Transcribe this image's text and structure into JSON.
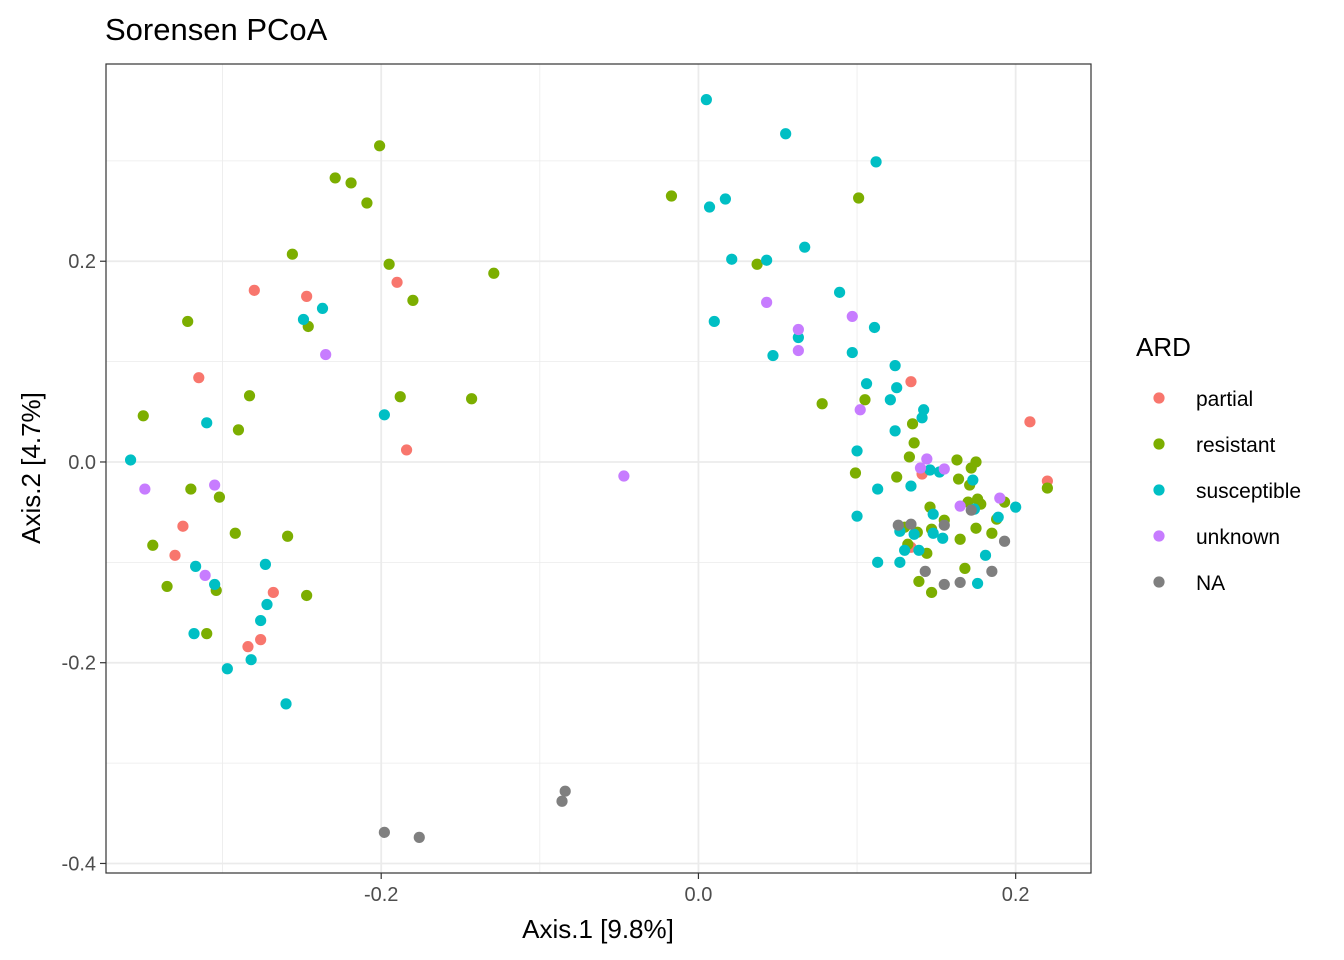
{
  "chart_data": {
    "type": "scatter",
    "title": "Sorensen PCoA",
    "xlabel": "Axis.1   [9.8%]",
    "ylabel": "Axis.2   [4.7%]",
    "xlim": [
      -0.3735,
      0.2475
    ],
    "ylim": [
      -0.4095,
      0.3965
    ],
    "x_ticks": [
      {
        "value": -0.2,
        "label": "-0.2"
      },
      {
        "value": 0.0,
        "label": "0.0"
      },
      {
        "value": 0.2,
        "label": "0.2"
      }
    ],
    "y_ticks": [
      {
        "value": -0.4,
        "label": "-0.4"
      },
      {
        "value": -0.2,
        "label": "-0.2"
      },
      {
        "value": 0.0,
        "label": "0.0"
      },
      {
        "value": 0.2,
        "label": "0.2"
      }
    ],
    "grid": true,
    "legend": {
      "title": "ARD",
      "position": "right"
    },
    "series": [
      {
        "name": "partial",
        "color": "#F8766D",
        "points": [
          [
            -0.28,
            0.171
          ],
          [
            -0.247,
            0.165
          ],
          [
            -0.19,
            0.179
          ],
          [
            -0.315,
            0.084
          ],
          [
            -0.184,
            0.012
          ],
          [
            -0.325,
            -0.064
          ],
          [
            -0.33,
            -0.093
          ],
          [
            -0.268,
            -0.13
          ],
          [
            -0.276,
            -0.177
          ],
          [
            -0.284,
            -0.184
          ],
          [
            0.134,
            0.08
          ],
          [
            0.209,
            0.04
          ],
          [
            0.22,
            -0.019
          ],
          [
            0.141,
            -0.012
          ],
          [
            0.134,
            -0.085
          ]
        ]
      },
      {
        "name": "resistant",
        "color": "#7CAE00",
        "points": [
          [
            -0.201,
            0.315
          ],
          [
            -0.229,
            0.283
          ],
          [
            -0.219,
            0.278
          ],
          [
            -0.209,
            0.258
          ],
          [
            -0.256,
            0.207
          ],
          [
            -0.195,
            0.197
          ],
          [
            -0.129,
            0.188
          ],
          [
            -0.18,
            0.161
          ],
          [
            -0.322,
            0.14
          ],
          [
            -0.246,
            0.135
          ],
          [
            -0.283,
            0.066
          ],
          [
            -0.188,
            0.065
          ],
          [
            -0.143,
            0.063
          ],
          [
            -0.35,
            0.046
          ],
          [
            -0.29,
            0.032
          ],
          [
            -0.32,
            -0.027
          ],
          [
            -0.302,
            -0.035
          ],
          [
            -0.292,
            -0.071
          ],
          [
            -0.259,
            -0.074
          ],
          [
            -0.344,
            -0.083
          ],
          [
            -0.335,
            -0.124
          ],
          [
            -0.304,
            -0.128
          ],
          [
            -0.247,
            -0.133
          ],
          [
            -0.31,
            -0.171
          ],
          [
            -0.017,
            0.265
          ],
          [
            0.101,
            0.263
          ],
          [
            0.037,
            0.197
          ],
          [
            0.078,
            0.058
          ],
          [
            0.105,
            0.062
          ],
          [
            0.135,
            0.038
          ],
          [
            0.136,
            0.019
          ],
          [
            0.133,
            0.005
          ],
          [
            0.099,
            -0.011
          ],
          [
            0.125,
            -0.015
          ],
          [
            0.146,
            -0.045
          ],
          [
            0.155,
            -0.058
          ],
          [
            0.163,
            0.002
          ],
          [
            0.172,
            -0.006
          ],
          [
            0.175,
            0.0
          ],
          [
            0.164,
            -0.017
          ],
          [
            0.171,
            -0.023
          ],
          [
            0.17,
            -0.04
          ],
          [
            0.176,
            -0.037
          ],
          [
            0.178,
            -0.042
          ],
          [
            0.193,
            -0.04
          ],
          [
            0.188,
            -0.057
          ],
          [
            0.185,
            -0.071
          ],
          [
            0.175,
            -0.066
          ],
          [
            0.13,
            -0.065
          ],
          [
            0.138,
            -0.07
          ],
          [
            0.147,
            -0.067
          ],
          [
            0.165,
            -0.077
          ],
          [
            0.132,
            -0.082
          ],
          [
            0.144,
            -0.091
          ],
          [
            0.168,
            -0.106
          ],
          [
            0.139,
            -0.119
          ],
          [
            0.147,
            -0.13
          ],
          [
            0.22,
            -0.026
          ]
        ]
      },
      {
        "name": "susceptible",
        "color": "#00BFC4",
        "points": [
          [
            0.005,
            0.361
          ],
          [
            0.055,
            0.327
          ],
          [
            0.112,
            0.299
          ],
          [
            0.007,
            0.254
          ],
          [
            0.017,
            0.262
          ],
          [
            0.021,
            0.202
          ],
          [
            0.043,
            0.201
          ],
          [
            0.067,
            0.214
          ],
          [
            0.01,
            0.14
          ],
          [
            0.089,
            0.169
          ],
          [
            0.111,
            0.134
          ],
          [
            0.063,
            0.124
          ],
          [
            0.047,
            0.106
          ],
          [
            0.097,
            0.109
          ],
          [
            0.124,
            0.096
          ],
          [
            0.106,
            0.078
          ],
          [
            0.121,
            0.062
          ],
          [
            0.125,
            0.074
          ],
          [
            0.142,
            0.052
          ],
          [
            0.141,
            0.044
          ],
          [
            0.124,
            0.031
          ],
          [
            0.1,
            0.011
          ],
          [
            0.146,
            -0.008
          ],
          [
            0.152,
            -0.01
          ],
          [
            0.113,
            -0.027
          ],
          [
            0.134,
            -0.024
          ],
          [
            0.1,
            -0.054
          ],
          [
            0.148,
            -0.052
          ],
          [
            0.173,
            -0.018
          ],
          [
            0.174,
            -0.047
          ],
          [
            0.189,
            -0.055
          ],
          [
            0.2,
            -0.045
          ],
          [
            0.127,
            -0.069
          ],
          [
            0.136,
            -0.072
          ],
          [
            0.148,
            -0.071
          ],
          [
            0.154,
            -0.076
          ],
          [
            0.13,
            -0.088
          ],
          [
            0.139,
            -0.088
          ],
          [
            0.181,
            -0.093
          ],
          [
            0.113,
            -0.1
          ],
          [
            0.127,
            -0.1
          ],
          [
            0.176,
            -0.121
          ],
          [
            -0.358,
            0.002
          ],
          [
            -0.31,
            0.039
          ],
          [
            -0.198,
            0.047
          ],
          [
            -0.237,
            0.153
          ],
          [
            -0.249,
            0.142
          ],
          [
            -0.317,
            -0.104
          ],
          [
            -0.305,
            -0.122
          ],
          [
            -0.273,
            -0.102
          ],
          [
            -0.272,
            -0.142
          ],
          [
            -0.276,
            -0.158
          ],
          [
            -0.318,
            -0.171
          ],
          [
            -0.297,
            -0.206
          ],
          [
            -0.282,
            -0.197
          ],
          [
            -0.26,
            -0.241
          ]
        ]
      },
      {
        "name": "unknown",
        "color": "#C77CFF",
        "points": [
          [
            -0.235,
            0.107
          ],
          [
            -0.305,
            -0.023
          ],
          [
            -0.349,
            -0.027
          ],
          [
            -0.311,
            -0.113
          ],
          [
            -0.047,
            -0.014
          ],
          [
            0.043,
            0.159
          ],
          [
            0.063,
            0.132
          ],
          [
            0.063,
            0.111
          ],
          [
            0.097,
            0.145
          ],
          [
            0.102,
            0.052
          ],
          [
            0.144,
            0.003
          ],
          [
            0.14,
            -0.006
          ],
          [
            0.155,
            -0.007
          ],
          [
            0.165,
            -0.044
          ],
          [
            0.19,
            -0.036
          ]
        ]
      },
      {
        "name": "NA",
        "color": "#7F7F7F",
        "points": [
          [
            -0.198,
            -0.369
          ],
          [
            -0.176,
            -0.374
          ],
          [
            -0.086,
            -0.338
          ],
          [
            -0.084,
            -0.328
          ],
          [
            0.126,
            -0.063
          ],
          [
            0.134,
            -0.062
          ],
          [
            0.155,
            -0.063
          ],
          [
            0.172,
            -0.048
          ],
          [
            0.193,
            -0.079
          ],
          [
            0.143,
            -0.109
          ],
          [
            0.185,
            -0.109
          ],
          [
            0.155,
            -0.122
          ],
          [
            0.165,
            -0.12
          ]
        ]
      }
    ]
  }
}
